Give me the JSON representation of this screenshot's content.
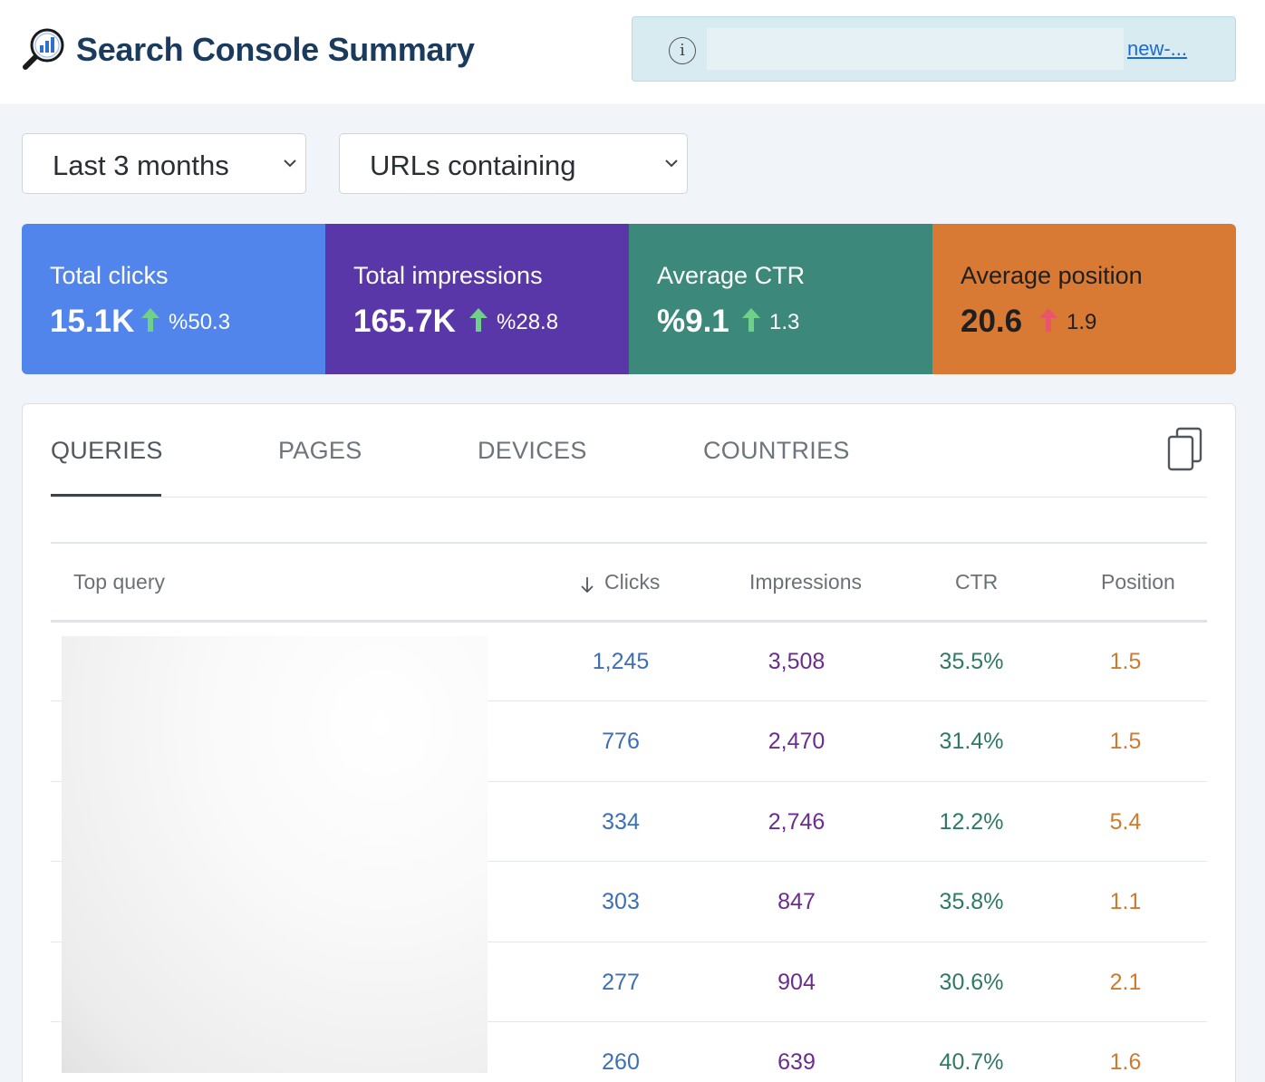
{
  "header": {
    "title": "Search Console Summary",
    "notice_link": "new-..."
  },
  "filters": {
    "date_range": "Last 3 months",
    "url_filter": "URLs containing"
  },
  "stats": [
    {
      "label": "Total clicks",
      "value": "15.1K",
      "change": "%50.3",
      "trend": "up",
      "color": "#5285ec"
    },
    {
      "label": "Total impressions",
      "value": "165.7K",
      "change": "%28.8",
      "trend": "up",
      "color": "#5a37a8"
    },
    {
      "label": "Average CTR",
      "value": "%9.1",
      "change": "1.3",
      "trend": "up",
      "color": "#3c897b"
    },
    {
      "label": "Average position",
      "value": "20.6",
      "change": "1.9",
      "trend": "up",
      "color": "#d87a33"
    }
  ],
  "tabs": [
    "QUERIES",
    "PAGES",
    "DEVICES",
    "COUNTRIES"
  ],
  "table": {
    "headers": {
      "query": "Top query",
      "clicks": "Clicks",
      "impressions": "Impressions",
      "ctr": "CTR",
      "position": "Position"
    },
    "rows": [
      {
        "clicks": "1,245",
        "impressions": "3,508",
        "ctr": "35.5%",
        "position": "1.5"
      },
      {
        "clicks": "776",
        "impressions": "2,470",
        "ctr": "31.4%",
        "position": "1.5"
      },
      {
        "clicks": "334",
        "impressions": "2,746",
        "ctr": "12.2%",
        "position": "5.4"
      },
      {
        "clicks": "303",
        "impressions": "847",
        "ctr": "35.8%",
        "position": "1.1"
      },
      {
        "clicks": "277",
        "impressions": "904",
        "ctr": "30.6%",
        "position": "2.1"
      },
      {
        "clicks": "260",
        "impressions": "639",
        "ctr": "40.7%",
        "position": "1.6"
      }
    ]
  }
}
